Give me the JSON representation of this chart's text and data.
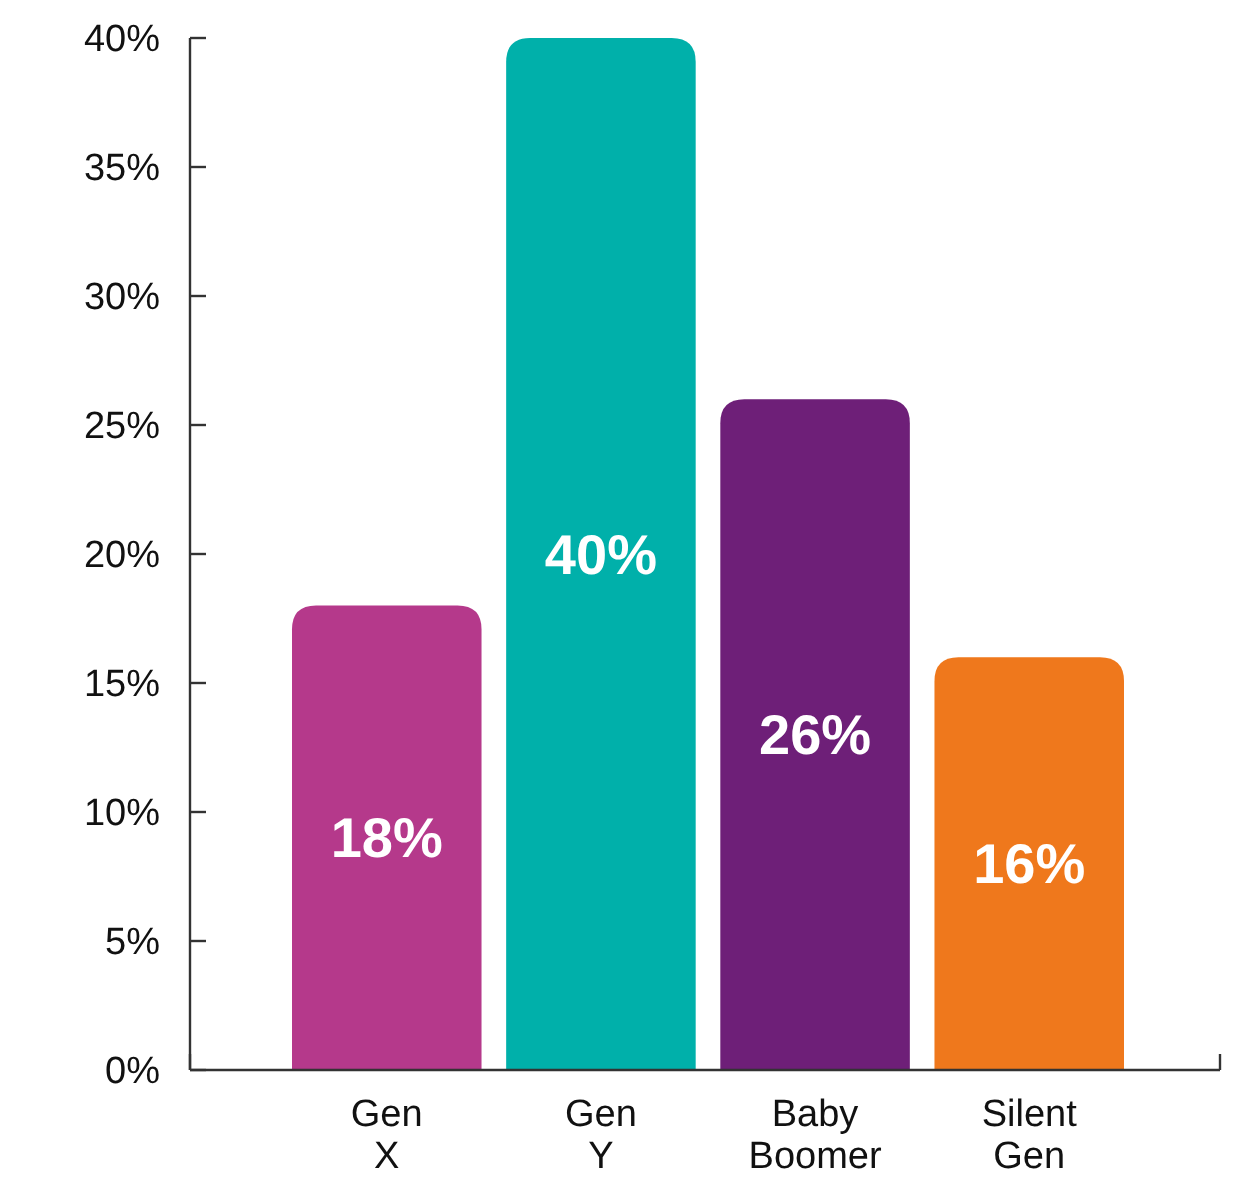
{
  "chart_data": {
    "type": "bar",
    "categories": [
      "Gen X",
      "Gen Y",
      "Baby Boomer",
      "Silent Gen"
    ],
    "values": [
      18,
      40,
      26,
      16
    ],
    "colors": [
      "#b5398b",
      "#00b0aa",
      "#6e1f78",
      "#ef781c"
    ],
    "value_labels": [
      "18%",
      "40%",
      "26%",
      "16%"
    ],
    "ylim": [
      0,
      40
    ],
    "yticks": [
      {
        "value": 0,
        "label": "0%"
      },
      {
        "value": 5,
        "label": "5%"
      },
      {
        "value": 10,
        "label": "10%"
      },
      {
        "value": 15,
        "label": "15%"
      },
      {
        "value": 20,
        "label": "20%"
      },
      {
        "value": 25,
        "label": "25%"
      },
      {
        "value": 30,
        "label": "30%"
      },
      {
        "value": 35,
        "label": "35%"
      },
      {
        "value": 40,
        "label": "40%"
      }
    ],
    "grid": false
  }
}
